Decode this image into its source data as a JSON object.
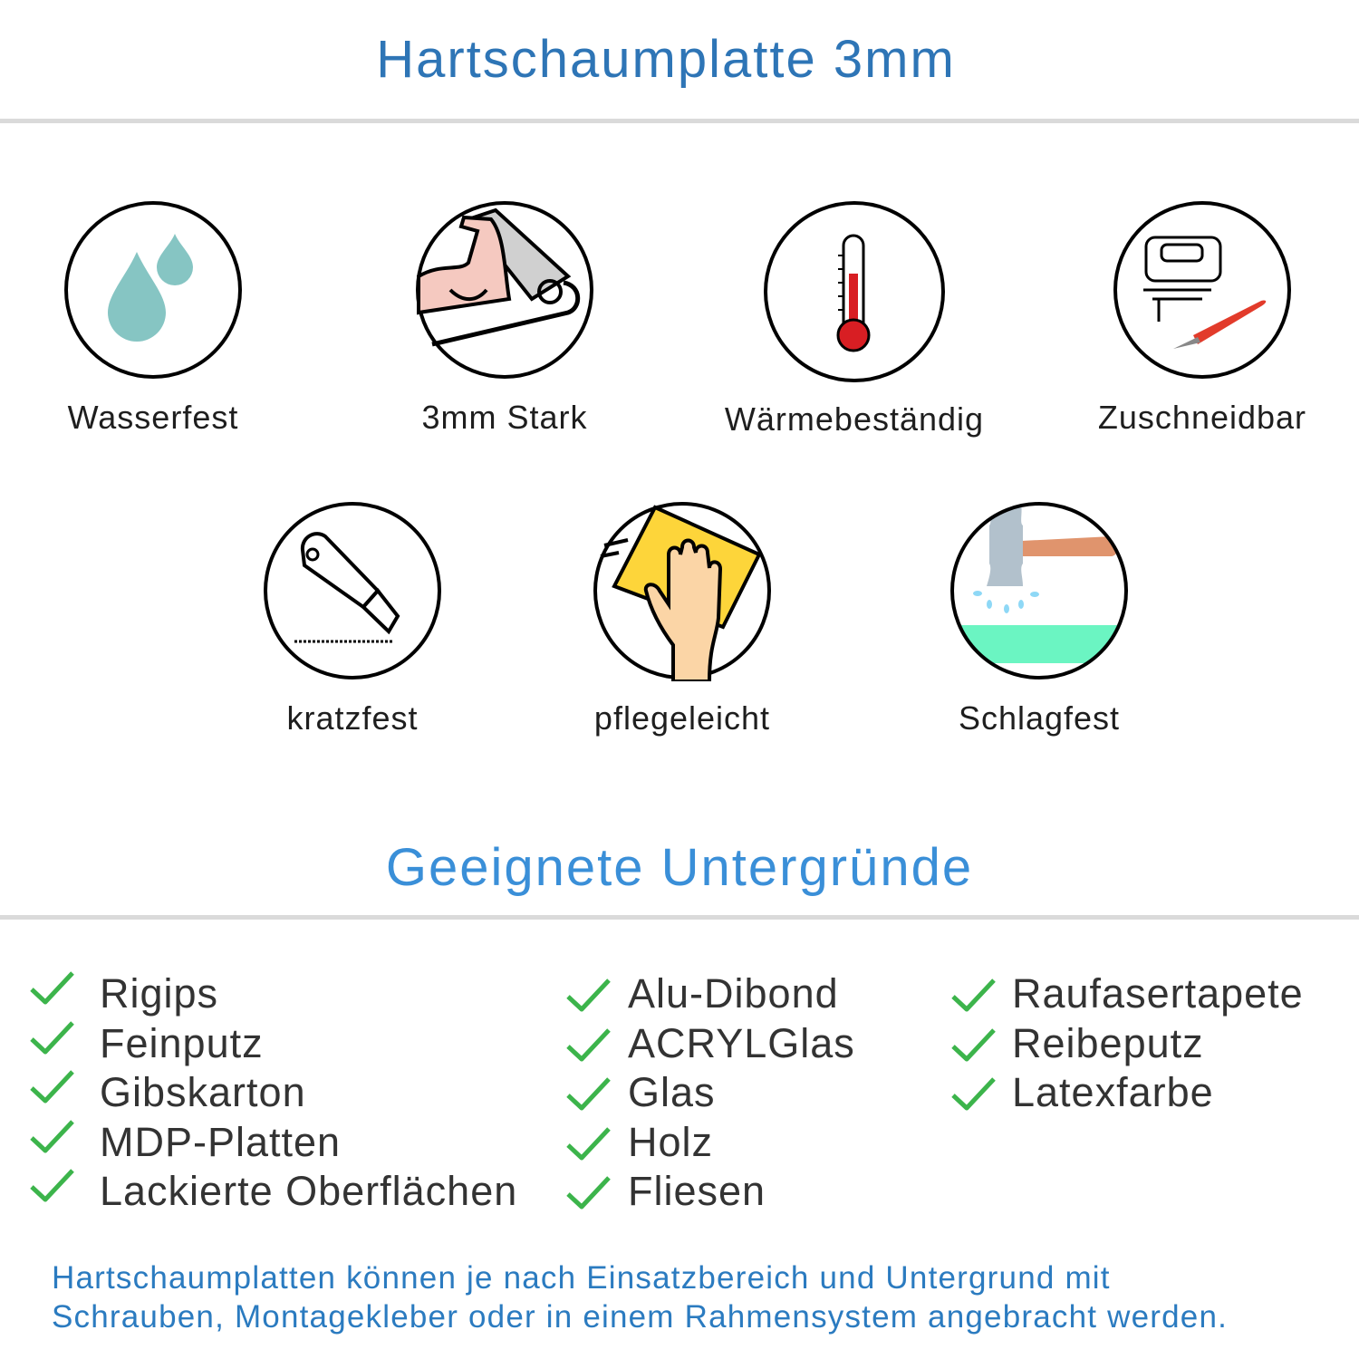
{
  "header": {
    "title": "Hartschaumplatte 3mm"
  },
  "colors": {
    "title": "#2e75b6",
    "section_title": "#3a8fd8",
    "check": "#3cb44b",
    "footer": "#2b7bc0",
    "rule": "#dadada"
  },
  "features": [
    {
      "label": "Wasserfest",
      "icon": "water-drops-icon"
    },
    {
      "label": "3mm Stark",
      "icon": "flexed-arm-icon"
    },
    {
      "label": "Wärmebeständig",
      "icon": "thermometer-icon"
    },
    {
      "label": "Zuschneidbar",
      "icon": "jigsaw-cutter-icon"
    },
    {
      "label": "kratzfest",
      "icon": "utility-knife-icon"
    },
    {
      "label": "pflegeleicht",
      "icon": "hand-sponge-icon"
    },
    {
      "label": "Schlagfest",
      "icon": "hammer-icon"
    }
  ],
  "surfaces": {
    "title": "Geeignete Untergründe",
    "columns": [
      [
        "Rigips",
        "Feinputz",
        "Gibskarton",
        "MDP-Platten",
        "Lackierte Oberflächen"
      ],
      [
        "Alu-Dibond",
        "ACRYLGlas",
        "Glas",
        "Holz",
        "Fliesen"
      ],
      [
        "Raufasertapete",
        "Reibeputz",
        "Latexfarbe"
      ]
    ]
  },
  "footer": {
    "line1": "Hartschaumplatten können je nach Einsatzbereich und Untergrund mit",
    "line2": "Schrauben, Montagekleber oder in einem Rahmensystem angebracht werden."
  }
}
